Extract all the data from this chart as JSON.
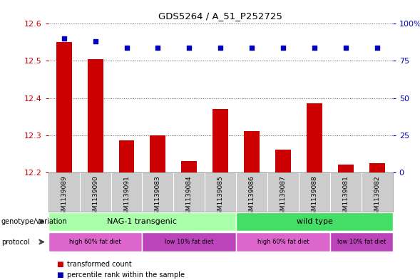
{
  "title": "GDS5264 / A_51_P252725",
  "samples": [
    "GSM1139089",
    "GSM1139090",
    "GSM1139091",
    "GSM1139083",
    "GSM1139084",
    "GSM1139085",
    "GSM1139086",
    "GSM1139087",
    "GSM1139088",
    "GSM1139081",
    "GSM1139082"
  ],
  "transformed_counts": [
    12.55,
    12.505,
    12.285,
    12.3,
    12.23,
    12.37,
    12.31,
    12.26,
    12.385,
    12.22,
    12.225
  ],
  "percentile_ranks": [
    90,
    88,
    84,
    84,
    84,
    84,
    84,
    84,
    84,
    84,
    84
  ],
  "ylim_left": [
    12.2,
    12.6
  ],
  "ylim_right": [
    0,
    100
  ],
  "yticks_left": [
    12.2,
    12.3,
    12.4,
    12.5,
    12.6
  ],
  "yticks_right": [
    0,
    25,
    50,
    75,
    100
  ],
  "bar_color": "#cc0000",
  "marker_color": "#0000bb",
  "bg_color": "#ffffff",
  "grid_color": "#555555",
  "genotype_groups": [
    {
      "label": "NAG-1 transgenic",
      "start": 0,
      "end": 6,
      "color": "#aaffaa"
    },
    {
      "label": "wild type",
      "start": 6,
      "end": 11,
      "color": "#44dd66"
    }
  ],
  "protocol_groups": [
    {
      "label": "high 60% fat diet",
      "start": 0,
      "end": 3,
      "color": "#dd66cc"
    },
    {
      "label": "low 10% fat diet",
      "start": 3,
      "end": 6,
      "color": "#bb44bb"
    },
    {
      "label": "high 60% fat diet",
      "start": 6,
      "end": 9,
      "color": "#dd66cc"
    },
    {
      "label": "low 10% fat diet",
      "start": 9,
      "end": 11,
      "color": "#bb44bb"
    }
  ],
  "left_label_color": "#cc0000",
  "right_label_color": "#0000bb",
  "tick_area_bg": "#cccccc",
  "genotype_label_color": "#555555",
  "protocol_label_color": "#555555"
}
